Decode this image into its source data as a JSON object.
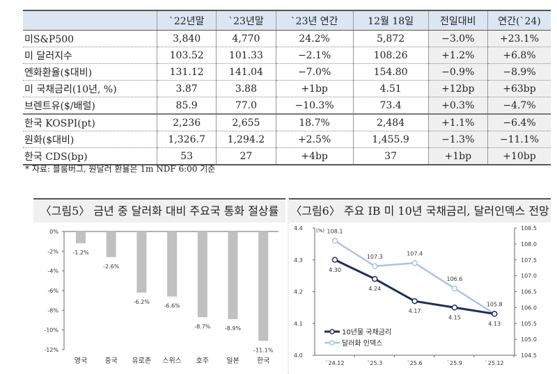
{
  "table": {
    "headers": [
      "",
      "`22년말",
      "`23년말",
      "`23년 연간",
      "12월 18일",
      "전일대비",
      "연간(`24)"
    ],
    "rows": [
      [
        "미S&P500",
        "3,840",
        "4,770",
        "24.2%",
        "5,872",
        "−3.0%",
        "+23.1%"
      ],
      [
        "미 달러지수",
        "103.52",
        "101.33",
        "−2.1%",
        "108.26",
        "+1.2%",
        "+6.8%"
      ],
      [
        "엔화환율($대비)",
        "131.12",
        "141.04",
        "−7.0%",
        "154.80",
        "−0.9%",
        "−8.9%"
      ],
      [
        "미 국채금리(10년, %)",
        "3.87",
        "3.88",
        "+1bp",
        "4.51",
        "+12bp",
        "+63bp"
      ],
      [
        "브렌트유($/배럴)",
        "85.9",
        "77.0",
        "−10.3%",
        "73.4",
        "+0.3%",
        "−4.7%"
      ],
      [
        "한국 KOSPI(pt)",
        "2,236",
        "2,655",
        "18.7%",
        "2,484",
        "+1.1%",
        "−6.4%"
      ],
      [
        "원화($대비)",
        "1,326.7",
        "1,294.2",
        "+2.5%",
        "1,455.9",
        "−1.3%",
        "−11.1%"
      ],
      [
        "한국 CDS(bp)",
        "53",
        "27",
        "+4bp",
        "37",
        "+1bp",
        "+10bp"
      ]
    ],
    "note": "* 자료: 블룸버그, 원달러 환율은 1m NDF 6:00 기준"
  },
  "chart_data": [
    {
      "type": "bar",
      "title": "〈그림5〉 금년 중 달러화 대비 주요국 통화 절상률",
      "categories": [
        "영국",
        "중국",
        "유로존",
        "스위스",
        "호주",
        "일본",
        "한국"
      ],
      "values": [
        -1.2,
        -2.6,
        -6.2,
        -6.6,
        -8.7,
        -8.9,
        -11.1
      ],
      "value_labels": [
        "-1.2%",
        "-2.6%",
        "-6.2%",
        "-6.6%",
        "-8.7%",
        "-8.9%",
        "-11.1%"
      ],
      "ylim": [
        -12,
        0
      ],
      "yticks": [
        "0%",
        "-2%",
        "-4%",
        "-6%",
        "-8%",
        "-10%",
        "-12%"
      ],
      "color": "#c0c0c0"
    },
    {
      "type": "line",
      "title": "〈그림6〉 주요 IB 미 10년 국채금리, 달러인덱스 전망",
      "categories": [
        "`24.12",
        "`25.3",
        "`25.6",
        "`25.9",
        "`25.12"
      ],
      "ylabel": "(%)",
      "ylim": [
        4.0,
        4.4
      ],
      "yticks": [
        "4.4",
        "4.3",
        "4.2",
        "4.1",
        "4.0"
      ],
      "y2lim": [
        104.5,
        108.5
      ],
      "y2ticks": [
        "108.5",
        "108.0",
        "107.5",
        "107.0",
        "106.5",
        "106.0",
        "105.5",
        "105.0",
        "104.5"
      ],
      "legend_position": "bottom-left",
      "series": [
        {
          "name": "10년물 국채금리",
          "axis": "left",
          "color": "#1f2d5c",
          "values": [
            4.3,
            4.24,
            4.17,
            4.15,
            4.13
          ],
          "labels": [
            "4.30",
            "4.24",
            "4.17",
            "4.15",
            "4.13"
          ]
        },
        {
          "name": "달러화 인덱스",
          "axis": "right",
          "color": "#a9c6e4",
          "values": [
            108.1,
            107.3,
            107.4,
            106.6,
            105.8
          ],
          "labels": [
            "108.1",
            "107.3",
            "107.4",
            "106.6",
            "105.8"
          ]
        }
      ]
    }
  ]
}
